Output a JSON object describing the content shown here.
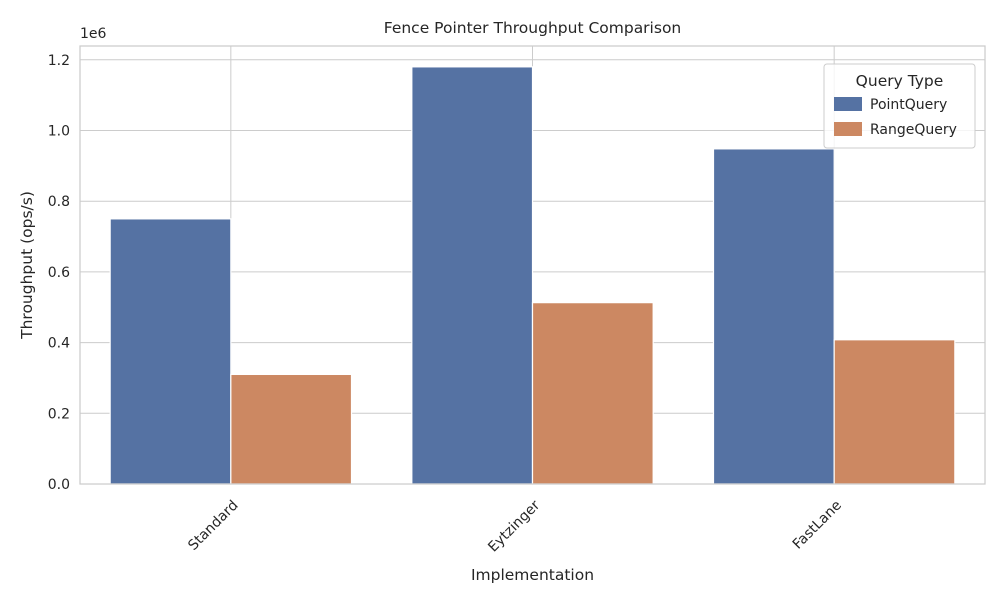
{
  "chart_data": {
    "type": "bar",
    "title": "Fence Pointer Throughput Comparison",
    "xlabel": "Implementation",
    "ylabel": "Throughput (ops/s)",
    "y_scale_label": "1e6",
    "categories": [
      "Standard",
      "Eytzinger",
      "FastLane"
    ],
    "series": [
      {
        "name": "PointQuery",
        "color": "#5572a3",
        "values": [
          750000,
          1180000,
          948000
        ]
      },
      {
        "name": "RangeQuery",
        "color": "#cc8862",
        "values": [
          310000,
          513000,
          408000
        ]
      }
    ],
    "ylim": [
      0,
      1239000
    ],
    "yticks": [
      0,
      200000,
      400000,
      600000,
      800000,
      1000000,
      1200000
    ],
    "ytick_labels": [
      "0.0",
      "0.2",
      "0.4",
      "0.6",
      "0.8",
      "1.0",
      "1.2"
    ],
    "legend": {
      "title": "Query Type",
      "position": "top-right"
    },
    "grid": true
  }
}
